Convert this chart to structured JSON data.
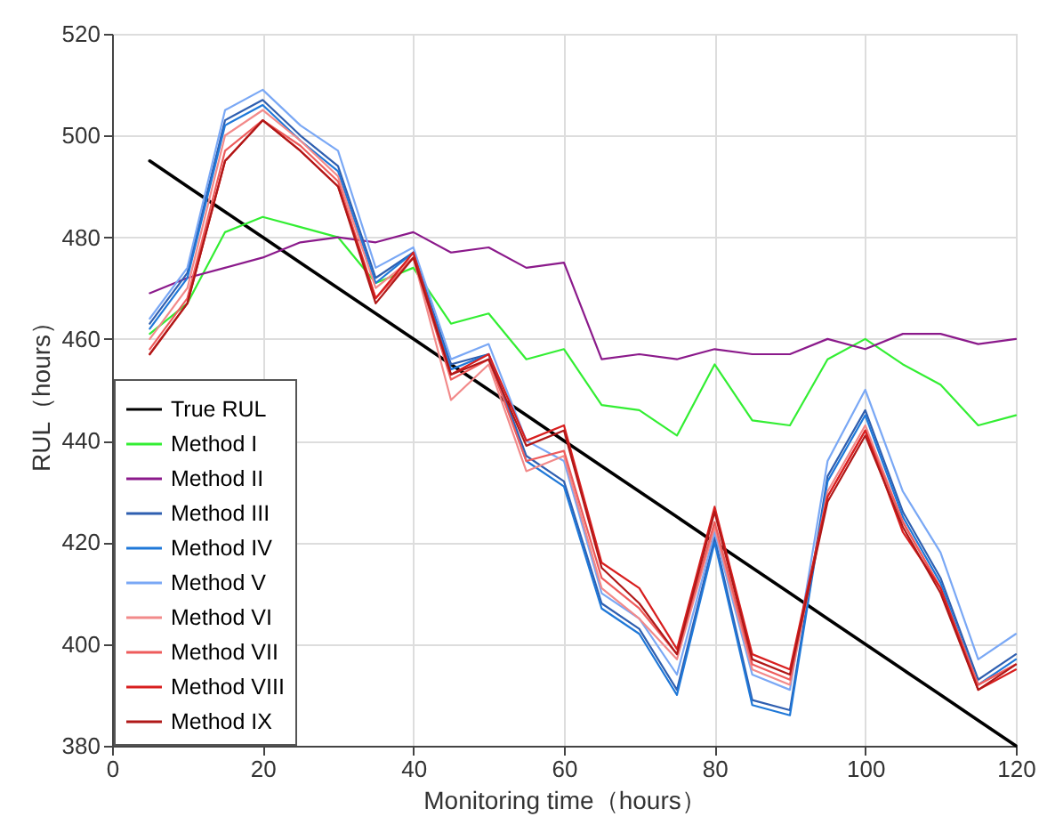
{
  "chart_data": {
    "type": "line",
    "xlabel": "Monitoring time（hours）",
    "ylabel": "RUL（hours）",
    "x": [
      5,
      10,
      15,
      20,
      25,
      30,
      35,
      40,
      45,
      50,
      55,
      60,
      65,
      70,
      75,
      80,
      85,
      90,
      95,
      100,
      105,
      110,
      115,
      120
    ],
    "xlim": [
      0,
      120
    ],
    "xticks": [
      0,
      20,
      40,
      60,
      80,
      100,
      120
    ],
    "ylim": [
      380,
      520
    ],
    "yticks": [
      380,
      400,
      420,
      440,
      460,
      480,
      500,
      520
    ],
    "grid": true,
    "legend": "bottom left",
    "marker": "none",
    "line_style": "solid",
    "series": [
      {
        "name": "True RUL",
        "color": "#000000",
        "values": [
          495,
          490,
          485,
          480,
          475,
          470,
          465,
          460,
          455,
          450,
          445,
          440,
          435,
          430,
          425,
          420,
          415,
          410,
          405,
          400,
          395,
          390,
          385,
          380
        ]
      },
      {
        "name": "Method I",
        "color": "#33ee33",
        "values": [
          461,
          467,
          481,
          484,
          482,
          480,
          471,
          474,
          463,
          465,
          456,
          458,
          447,
          446,
          441,
          455,
          444,
          443,
          456,
          460,
          455,
          451,
          443,
          445
        ]
      },
      {
        "name": "Method II",
        "color": "#8b1a8b",
        "values": [
          469,
          472,
          474,
          476,
          479,
          480,
          479,
          481,
          477,
          478,
          474,
          475,
          456,
          457,
          456,
          458,
          457,
          457,
          460,
          458,
          461,
          461,
          459,
          460
        ]
      },
      {
        "name": "Method III",
        "color": "#2f5fb0",
        "values": [
          463,
          473,
          503,
          507,
          500,
          494,
          472,
          477,
          455,
          457,
          437,
          432,
          408,
          403,
          391,
          421,
          389,
          387,
          433,
          446,
          426,
          413,
          393,
          398
        ]
      },
      {
        "name": "Method IV",
        "color": "#1f78d8",
        "values": [
          462,
          472,
          502,
          506,
          499,
          493,
          471,
          477,
          454,
          457,
          436,
          431,
          407,
          402,
          390,
          420,
          388,
          386,
          432,
          445,
          425,
          412,
          392,
          397
        ]
      },
      {
        "name": "Method V",
        "color": "#7aa8f5",
        "values": [
          464,
          474,
          505,
          509,
          502,
          497,
          474,
          478,
          456,
          459,
          440,
          436,
          410,
          405,
          394,
          422,
          394,
          391,
          436,
          450,
          430,
          418,
          397,
          402
        ]
      },
      {
        "name": "Method VI",
        "color": "#f28a8a",
        "values": [
          460,
          470,
          500,
          505,
          499,
          492,
          470,
          476,
          448,
          455,
          434,
          437,
          411,
          405,
          397,
          423,
          395,
          392,
          430,
          443,
          424,
          411,
          392,
          396
        ]
      },
      {
        "name": "Method VII",
        "color": "#ee5c5c",
        "values": [
          458,
          468,
          497,
          503,
          498,
          491,
          468,
          476,
          452,
          456,
          436,
          438,
          413,
          407,
          398,
          424,
          396,
          393,
          429,
          442,
          424,
          411,
          392,
          396
        ]
      },
      {
        "name": "Method VIII",
        "color": "#d81f1f",
        "values": [
          457,
          467,
          495,
          503,
          497,
          490,
          468,
          477,
          453,
          457,
          440,
          443,
          416,
          411,
          399,
          427,
          398,
          395,
          429,
          442,
          422,
          411,
          391,
          395
        ]
      },
      {
        "name": "Method IX",
        "color": "#b01818",
        "values": [
          457,
          467,
          495,
          503,
          497,
          490,
          467,
          476,
          453,
          456,
          439,
          442,
          415,
          408,
          398,
          426,
          397,
          394,
          428,
          441,
          423,
          410,
          391,
          396
        ]
      }
    ]
  }
}
